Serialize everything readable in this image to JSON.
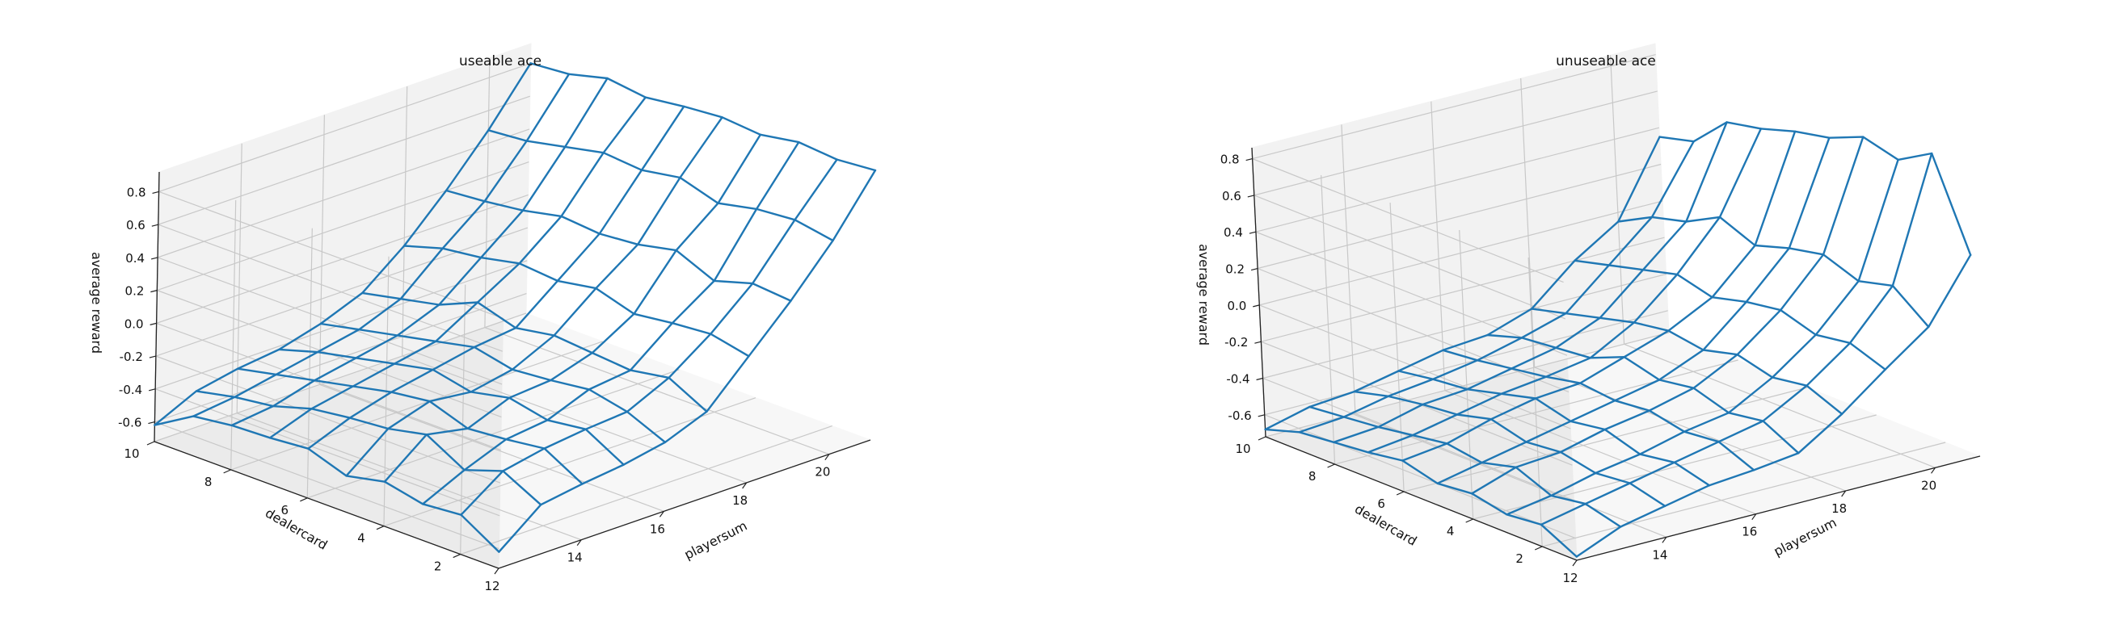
{
  "chart_data": [
    {
      "type": "surface-wireframe",
      "title": "useable ace",
      "xlabel": "playersum",
      "ylabel": "dealercard",
      "zlabel": "average reward",
      "x": [
        12,
        13,
        14,
        15,
        16,
        17,
        18,
        19,
        20,
        21
      ],
      "y": [
        1,
        2,
        3,
        4,
        5,
        6,
        7,
        8,
        9,
        10
      ],
      "xticks": [
        "12",
        "14",
        "16",
        "18",
        "20"
      ],
      "yticks": [
        "2",
        "4",
        "6",
        "8",
        "10"
      ],
      "zticks": [
        "-0.6",
        "-0.4",
        "-0.2",
        "0.0",
        "0.2",
        "0.4",
        "0.6",
        "0.8"
      ],
      "xlim": [
        12,
        21
      ],
      "ylim": [
        1,
        10
      ],
      "zlim": [
        -0.72,
        0.92
      ],
      "z": [
        [
          -0.62,
          -0.48,
          -0.5,
          -0.45,
          -0.5,
          -0.42,
          -0.44,
          -0.45,
          -0.48,
          -0.62
        ],
        [
          -0.42,
          -0.3,
          -0.38,
          -0.25,
          -0.3,
          -0.32,
          -0.35,
          -0.42,
          -0.45,
          -0.5
        ],
        [
          -0.38,
          -0.25,
          -0.28,
          -0.3,
          -0.22,
          -0.25,
          -0.3,
          -0.35,
          -0.4,
          -0.45
        ],
        [
          -0.35,
          -0.22,
          -0.25,
          -0.2,
          -0.25,
          -0.2,
          -0.25,
          -0.3,
          -0.35,
          -0.42
        ],
        [
          -0.3,
          -0.2,
          -0.15,
          -0.18,
          -0.2,
          -0.15,
          -0.2,
          -0.25,
          -0.3,
          -0.35
        ],
        [
          -0.2,
          -0.08,
          -0.12,
          -0.1,
          -0.08,
          -0.12,
          -0.05,
          -0.15,
          -0.2,
          -0.25
        ],
        [
          0.05,
          0.1,
          0.08,
          0.05,
          0.12,
          0.08,
          0.1,
          0.05,
          0.02,
          -0.05
        ],
        [
          0.3,
          0.32,
          0.25,
          0.35,
          0.3,
          0.28,
          0.3,
          0.25,
          0.22,
          0.2
        ],
        [
          0.58,
          0.62,
          0.6,
          0.55,
          0.62,
          0.58,
          0.6,
          0.55,
          0.5,
          0.48
        ],
        [
          0.92,
          0.9,
          0.92,
          0.88,
          0.9,
          0.88,
          0.85,
          0.88,
          0.82,
          0.8
        ]
      ]
    },
    {
      "type": "surface-wireframe",
      "title": "unuseable ace",
      "xlabel": "playersum",
      "ylabel": "dealercard",
      "zlabel": "average reward",
      "x": [
        12,
        13,
        14,
        15,
        16,
        17,
        18,
        19,
        20,
        21
      ],
      "y": [
        1,
        2,
        3,
        4,
        5,
        6,
        7,
        8,
        9,
        10
      ],
      "xticks": [
        "12",
        "14",
        "16",
        "18",
        "20"
      ],
      "yticks": [
        "2",
        "4",
        "6",
        "8",
        "10"
      ],
      "zticks": [
        "-0.6",
        "-0.4",
        "-0.2",
        "0.0",
        "0.2",
        "0.4",
        "0.6",
        "0.8"
      ],
      "xlim": [
        12,
        21
      ],
      "ylim": [
        1,
        10
      ],
      "zlim": [
        -0.72,
        0.86
      ],
      "z": [
        [
          -0.7,
          -0.6,
          -0.62,
          -0.58,
          -0.6,
          -0.55,
          -0.58,
          -0.6,
          -0.62,
          -0.68
        ],
        [
          -0.6,
          -0.55,
          -0.58,
          -0.5,
          -0.55,
          -0.52,
          -0.55,
          -0.58,
          -0.6,
          -0.62
        ],
        [
          -0.55,
          -0.5,
          -0.52,
          -0.48,
          -0.5,
          -0.45,
          -0.5,
          -0.52,
          -0.55,
          -0.6
        ],
        [
          -0.5,
          -0.45,
          -0.48,
          -0.42,
          -0.45,
          -0.4,
          -0.45,
          -0.5,
          -0.52,
          -0.55
        ],
        [
          -0.48,
          -0.4,
          -0.42,
          -0.38,
          -0.4,
          -0.38,
          -0.42,
          -0.45,
          -0.48,
          -0.5
        ],
        [
          -0.45,
          -0.35,
          -0.38,
          -0.32,
          -0.35,
          -0.3,
          -0.38,
          -0.4,
          -0.42,
          -0.48
        ],
        [
          -0.3,
          -0.22,
          -0.25,
          -0.2,
          -0.25,
          -0.22,
          -0.25,
          -0.3,
          -0.35,
          -0.4
        ],
        [
          -0.12,
          -0.05,
          -0.08,
          -0.02,
          -0.05,
          -0.1,
          -0.05,
          -0.1,
          -0.15,
          -0.2
        ],
        [
          0.05,
          0.2,
          0.15,
          0.22,
          0.18,
          0.12,
          0.2,
          0.1,
          0.05,
          -0.05
        ],
        [
          0.38,
          0.86,
          0.75,
          0.8,
          0.72,
          0.68,
          0.62,
          0.58,
          0.4,
          0.35
        ]
      ]
    }
  ]
}
